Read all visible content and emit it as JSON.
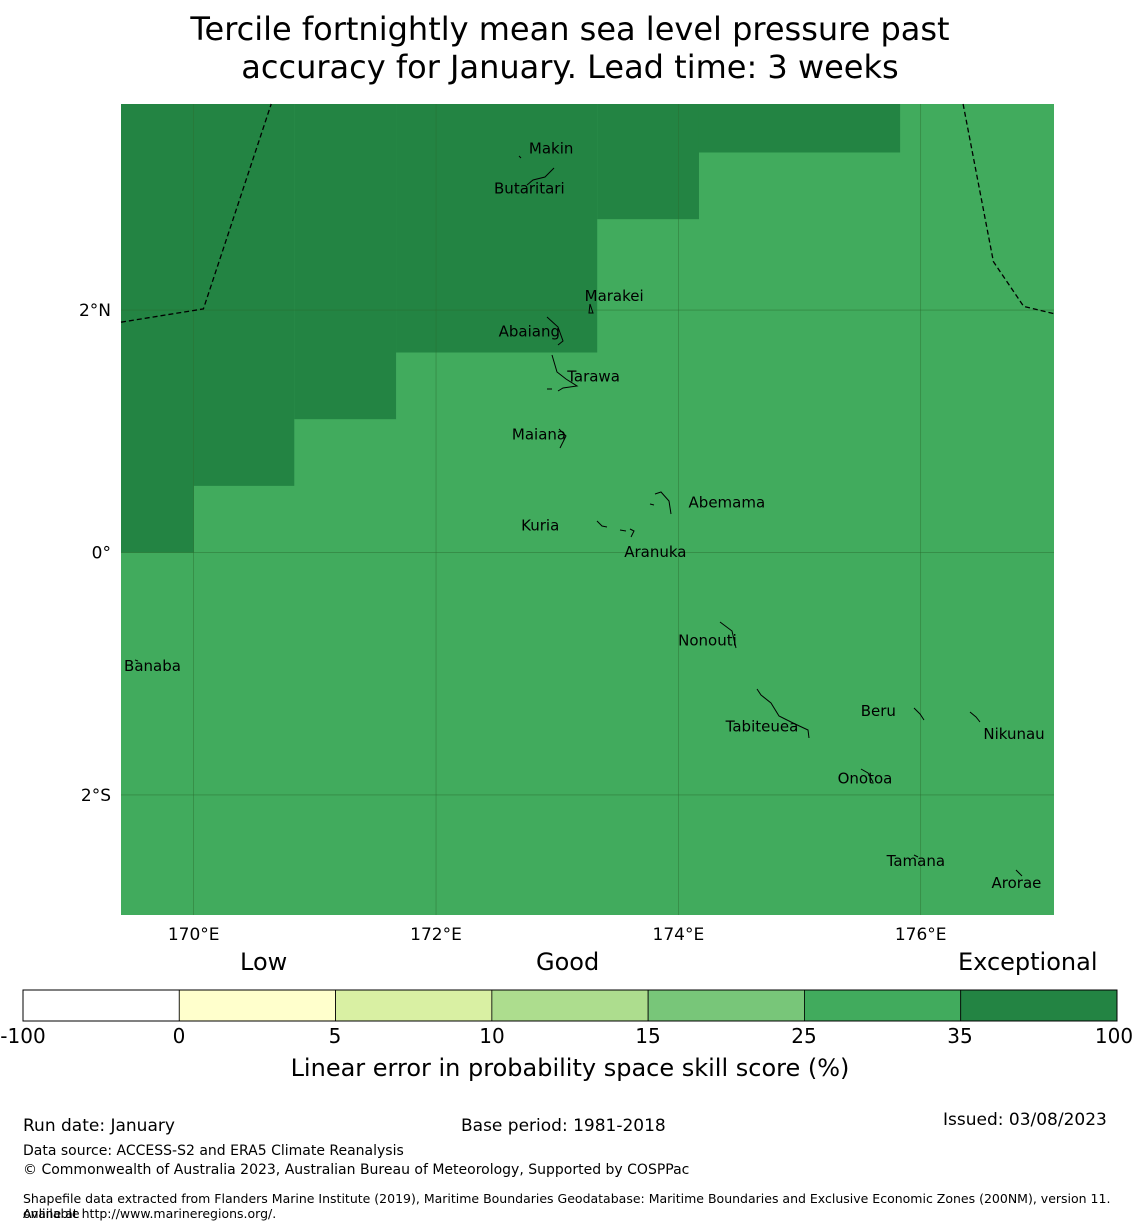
{
  "title_line1": "Tercile fortnightly mean sea level pressure past",
  "title_line2": "accuracy for January. Lead time: 3 weeks",
  "map": {
    "extent": {
      "lon_min": 169.4,
      "lon_max": 177.1,
      "lat_min": -2.99,
      "lat_max": 3.7
    },
    "lon_ticks": [
      {
        "value": 170,
        "label": "170°E"
      },
      {
        "value": 172,
        "label": "172°E"
      },
      {
        "value": 174,
        "label": "174°E"
      },
      {
        "value": 176,
        "label": "176°E"
      }
    ],
    "lat_ticks": [
      {
        "value": 2,
        "label": "2°N"
      },
      {
        "value": 0,
        "label": "0°"
      },
      {
        "value": -2,
        "label": "2°S"
      }
    ],
    "cells": [
      {
        "lon": [
          169.4,
          177.1
        ],
        "lat": [
          -2.99,
          3.7
        ],
        "category": "25 to 35"
      },
      {
        "lon": [
          169.4,
          170.0
        ],
        "lat": [
          0.0,
          3.7
        ],
        "category": "35 to 100"
      },
      {
        "lon": [
          170.0,
          170.83
        ],
        "lat": [
          0.55,
          3.7
        ],
        "category": "35 to 100"
      },
      {
        "lon": [
          170.83,
          171.67
        ],
        "lat": [
          1.1,
          3.7
        ],
        "category": "35 to 100"
      },
      {
        "lon": [
          171.67,
          173.33
        ],
        "lat": [
          1.65,
          3.7
        ],
        "category": "35 to 100"
      },
      {
        "lon": [
          173.33,
          174.17
        ],
        "lat": [
          2.75,
          3.7
        ],
        "category": "35 to 100"
      },
      {
        "lon": [
          174.17,
          175.83
        ],
        "lat": [
          3.3,
          3.7
        ],
        "category": "35 to 100"
      }
    ],
    "eez_boundaries": [
      [
        [
          169.4,
          1.9
        ],
        [
          170.08,
          2.01
        ],
        [
          170.64,
          3.7
        ]
      ],
      [
        [
          176.35,
          3.7
        ],
        [
          176.6,
          2.4
        ],
        [
          176.85,
          2.03
        ],
        [
          177.1,
          1.97
        ]
      ]
    ],
    "places": [
      {
        "name": "Makin",
        "lon": 172.95,
        "lat": 3.33
      },
      {
        "name": "Butaritari",
        "lon": 172.77,
        "lat": 3.0
      },
      {
        "name": "Marakei",
        "lon": 173.47,
        "lat": 2.11
      },
      {
        "name": "Abaiang",
        "lon": 172.77,
        "lat": 1.82
      },
      {
        "name": "Tarawa",
        "lon": 173.3,
        "lat": 1.45
      },
      {
        "name": "Maiana",
        "lon": 172.85,
        "lat": 0.97
      },
      {
        "name": "Abemama",
        "lon": 174.4,
        "lat": 0.41
      },
      {
        "name": "Kuria",
        "lon": 172.86,
        "lat": 0.22
      },
      {
        "name": "Aranuka",
        "lon": 173.81,
        "lat": -0.0
      },
      {
        "name": "Nonouti",
        "lon": 174.24,
        "lat": -0.73
      },
      {
        "name": "Banaba",
        "lon": 169.66,
        "lat": -0.94
      },
      {
        "name": "Beru",
        "lon": 175.65,
        "lat": -1.31
      },
      {
        "name": "Tabiteuea",
        "lon": 174.69,
        "lat": -1.44
      },
      {
        "name": "Nikunau",
        "lon": 176.77,
        "lat": -1.5
      },
      {
        "name": "Onotoa",
        "lon": 175.54,
        "lat": -1.87
      },
      {
        "name": "Tamana",
        "lon": 175.96,
        "lat": -2.55
      },
      {
        "name": "Arorae",
        "lon": 176.79,
        "lat": -2.73
      }
    ],
    "colors": {
      "background": "#78c679",
      "grid": "#2b6b2f",
      "coast": "#000000"
    }
  },
  "legend": {
    "categories": [
      {
        "label": "Low"
      },
      {
        "label": "Good"
      },
      {
        "label": "Exceptional"
      }
    ],
    "bins": [
      {
        "from": "-100",
        "to": "0",
        "color": "#ffffff"
      },
      {
        "from": "0",
        "to": "5",
        "color": "#ffffcc"
      },
      {
        "from": "5",
        "to": "10",
        "color": "#d9f0a3"
      },
      {
        "from": "10",
        "to": "15",
        "color": "#addd8e"
      },
      {
        "from": "15",
        "to": "25",
        "color": "#78c679"
      },
      {
        "from": "25",
        "to": "35",
        "color": "#41ab5d"
      },
      {
        "from": "35",
        "to": "100",
        "color": "#238443"
      }
    ],
    "tick_labels": [
      "-100",
      "0",
      "5",
      "10",
      "15",
      "25",
      "35",
      "100"
    ],
    "title": "Linear error in probability space skill score (%)"
  },
  "footer": {
    "run_date": "Run date: January",
    "base_period": "Base period: 1981-2018",
    "issued": "Issued: 03/08/2023",
    "data_source": "Data source: ACCESS-S2 and ERA5 Climate Reanalysis",
    "copyright": "© Commonwealth of Australia 2023, Australian Bureau of Meteorology, Supported by COSPPac",
    "shapefile_line1": "Shapefile data extracted from Flanders Marine Institute (2019), Maritime Boundaries Geodatabase: Maritime Boundaries and Exclusive Economic Zones (200NM), version 11. Available",
    "shapefile_line2": "online at http://www.marineregions.org/."
  }
}
